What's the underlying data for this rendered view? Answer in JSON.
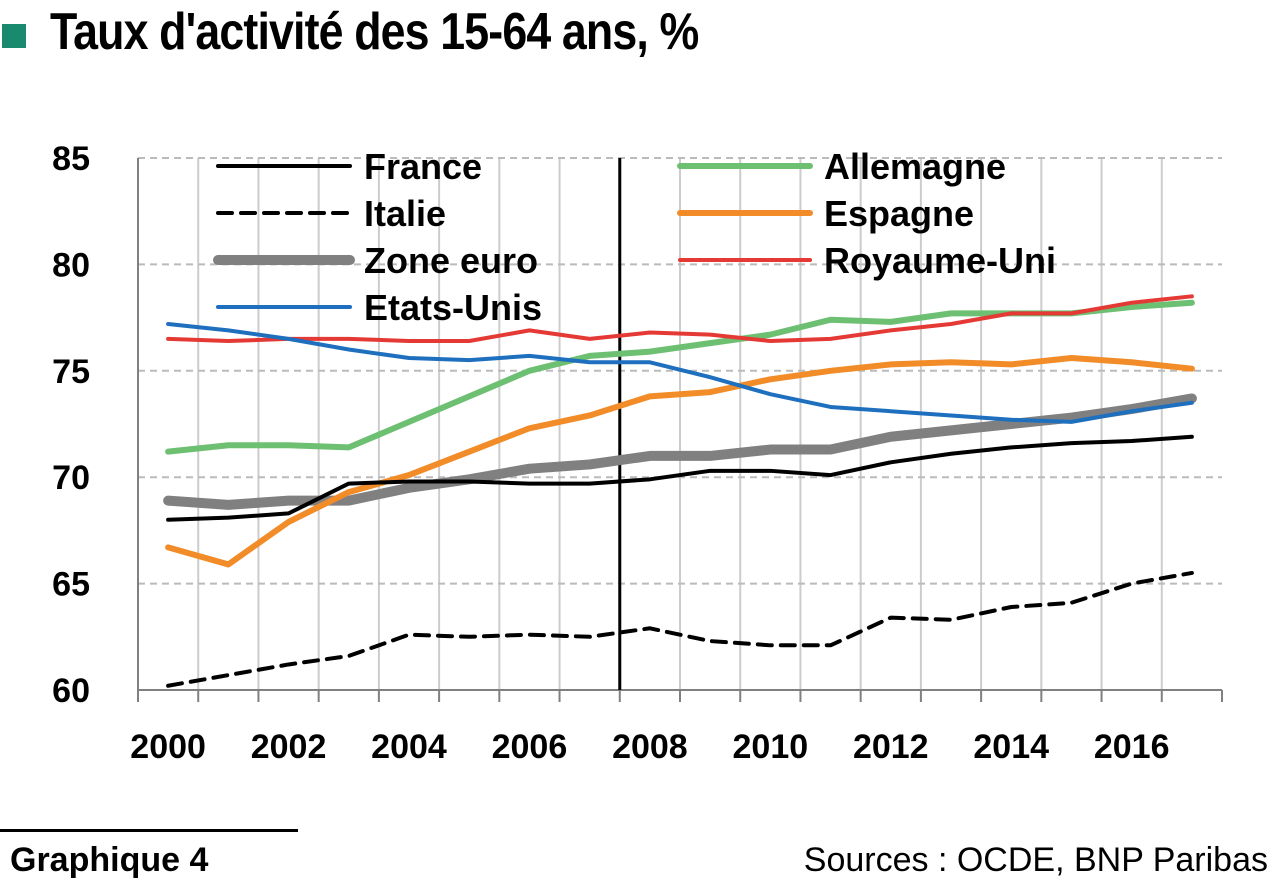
{
  "header": {
    "title": "Taux d'activité des 15-64 ans, %"
  },
  "footer": {
    "graph_label": "Graphique 4",
    "sources": "Sources : OCDE, BNP Paribas"
  },
  "chart_data": {
    "type": "line",
    "title": "Taux d'activité des 15-64 ans, %",
    "xlabel": "",
    "ylabel": "",
    "x": [
      2000,
      2001,
      2002,
      2003,
      2004,
      2005,
      2006,
      2007,
      2008,
      2009,
      2010,
      2011,
      2012,
      2013,
      2014,
      2015,
      2016,
      2017
    ],
    "xlim": [
      2000,
      2018
    ],
    "ylim": [
      60,
      85
    ],
    "x_ticks": [
      "2000",
      "2002",
      "2004",
      "2006",
      "2008",
      "2010",
      "2012",
      "2014",
      "2016"
    ],
    "y_ticks": [
      "60",
      "65",
      "70",
      "75",
      "80",
      "85"
    ],
    "vertical_marker_x": 2008,
    "grid": true,
    "legend_position": "top, two columns inside plot",
    "series": [
      {
        "name": "France",
        "color": "#000000",
        "style": "solid",
        "width": 4,
        "values": [
          68.0,
          68.1,
          68.3,
          69.7,
          69.8,
          69.8,
          69.7,
          69.7,
          69.9,
          70.3,
          70.3,
          70.1,
          70.7,
          71.1,
          71.4,
          71.6,
          71.7,
          71.9
        ]
      },
      {
        "name": "Allemagne",
        "color": "#6dbf72",
        "style": "solid",
        "width": 6,
        "values": [
          71.2,
          71.5,
          71.5,
          71.4,
          72.6,
          73.8,
          75.0,
          75.7,
          75.9,
          76.3,
          76.7,
          77.4,
          77.3,
          77.7,
          77.7,
          77.7,
          78.0,
          78.2
        ]
      },
      {
        "name": "Italie",
        "color": "#000000",
        "style": "dashed",
        "width": 4,
        "values": [
          60.2,
          60.7,
          61.2,
          61.6,
          62.6,
          62.5,
          62.6,
          62.5,
          62.9,
          62.3,
          62.1,
          62.1,
          63.4,
          63.3,
          63.9,
          64.1,
          65.0,
          65.5
        ]
      },
      {
        "name": "Espagne",
        "color": "#f28c28",
        "style": "solid",
        "width": 6,
        "values": [
          66.7,
          65.9,
          67.9,
          69.3,
          70.1,
          71.2,
          72.3,
          72.9,
          73.8,
          74.0,
          74.6,
          75.0,
          75.3,
          75.4,
          75.3,
          75.6,
          75.4,
          75.1
        ]
      },
      {
        "name": "Zone euro",
        "color": "#808080",
        "style": "solid",
        "width": 10,
        "values": [
          68.9,
          68.7,
          68.9,
          68.9,
          69.5,
          69.9,
          70.4,
          70.6,
          71.0,
          71.0,
          71.3,
          71.3,
          71.9,
          72.2,
          72.5,
          72.8,
          73.2,
          73.7
        ]
      },
      {
        "name": "Royaume-Uni",
        "color": "#e53935",
        "style": "solid",
        "width": 4,
        "values": [
          76.5,
          76.4,
          76.5,
          76.5,
          76.4,
          76.4,
          76.9,
          76.5,
          76.8,
          76.7,
          76.4,
          76.5,
          76.9,
          77.2,
          77.7,
          77.7,
          78.2,
          78.5
        ]
      },
      {
        "name": "Etats-Unis",
        "color": "#1f6fbf",
        "style": "solid",
        "width": 4,
        "values": [
          77.2,
          76.9,
          76.5,
          76.0,
          75.6,
          75.5,
          75.7,
          75.4,
          75.4,
          74.7,
          73.9,
          73.3,
          73.1,
          72.9,
          72.7,
          72.6,
          73.1,
          73.5
        ]
      }
    ]
  }
}
